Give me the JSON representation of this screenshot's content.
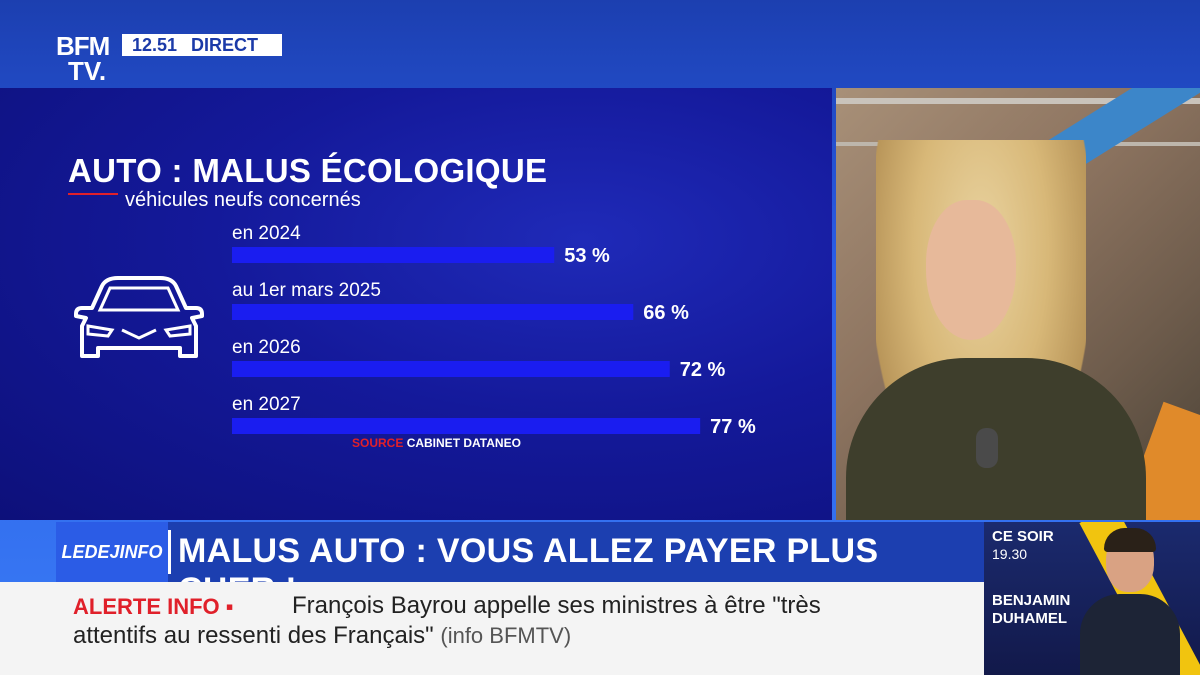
{
  "channel": {
    "logo_line1": "BFM",
    "logo_line2": "TV.",
    "time": "12.51",
    "live_label": "DIRECT"
  },
  "graphic": {
    "title": "AUTO : MALUS ÉCOLOGIQUE",
    "subtitle": "véhicules neufs concernés",
    "icon": "car-icon",
    "source_label": "SOURCE",
    "source_name": "CABINET DATANEO"
  },
  "chart_data": {
    "type": "bar",
    "orientation": "horizontal",
    "categories": [
      "en 2024",
      "au 1er mars 2025",
      "en 2026",
      "en 2027"
    ],
    "values": [
      53,
      66,
      72,
      77
    ],
    "value_labels": [
      "53 %",
      "66 %",
      "72 %",
      "77 %"
    ],
    "bar_color": "#1a1df0",
    "xlim": [
      0,
      100
    ],
    "grid": false
  },
  "banner": {
    "show_label": "LEDEJINFO",
    "headline": "MALUS AUTO : VOUS ALLEZ PAYER PLUS CHER !"
  },
  "ticker": {
    "label": "ALERTE INFO ▪",
    "line1": "François Bayrou appelle ses ministres à être \"très",
    "line2": "attentifs au ressenti des Français\"",
    "source": "(info BFMTV)"
  },
  "promo": {
    "when": "CE SOIR",
    "time": "19.30",
    "name_first": "BENJAMIN",
    "name_last": "DUHAMEL"
  },
  "colors": {
    "accent_red": "#e0202a",
    "brand_blue": "#1c3fb0"
  }
}
